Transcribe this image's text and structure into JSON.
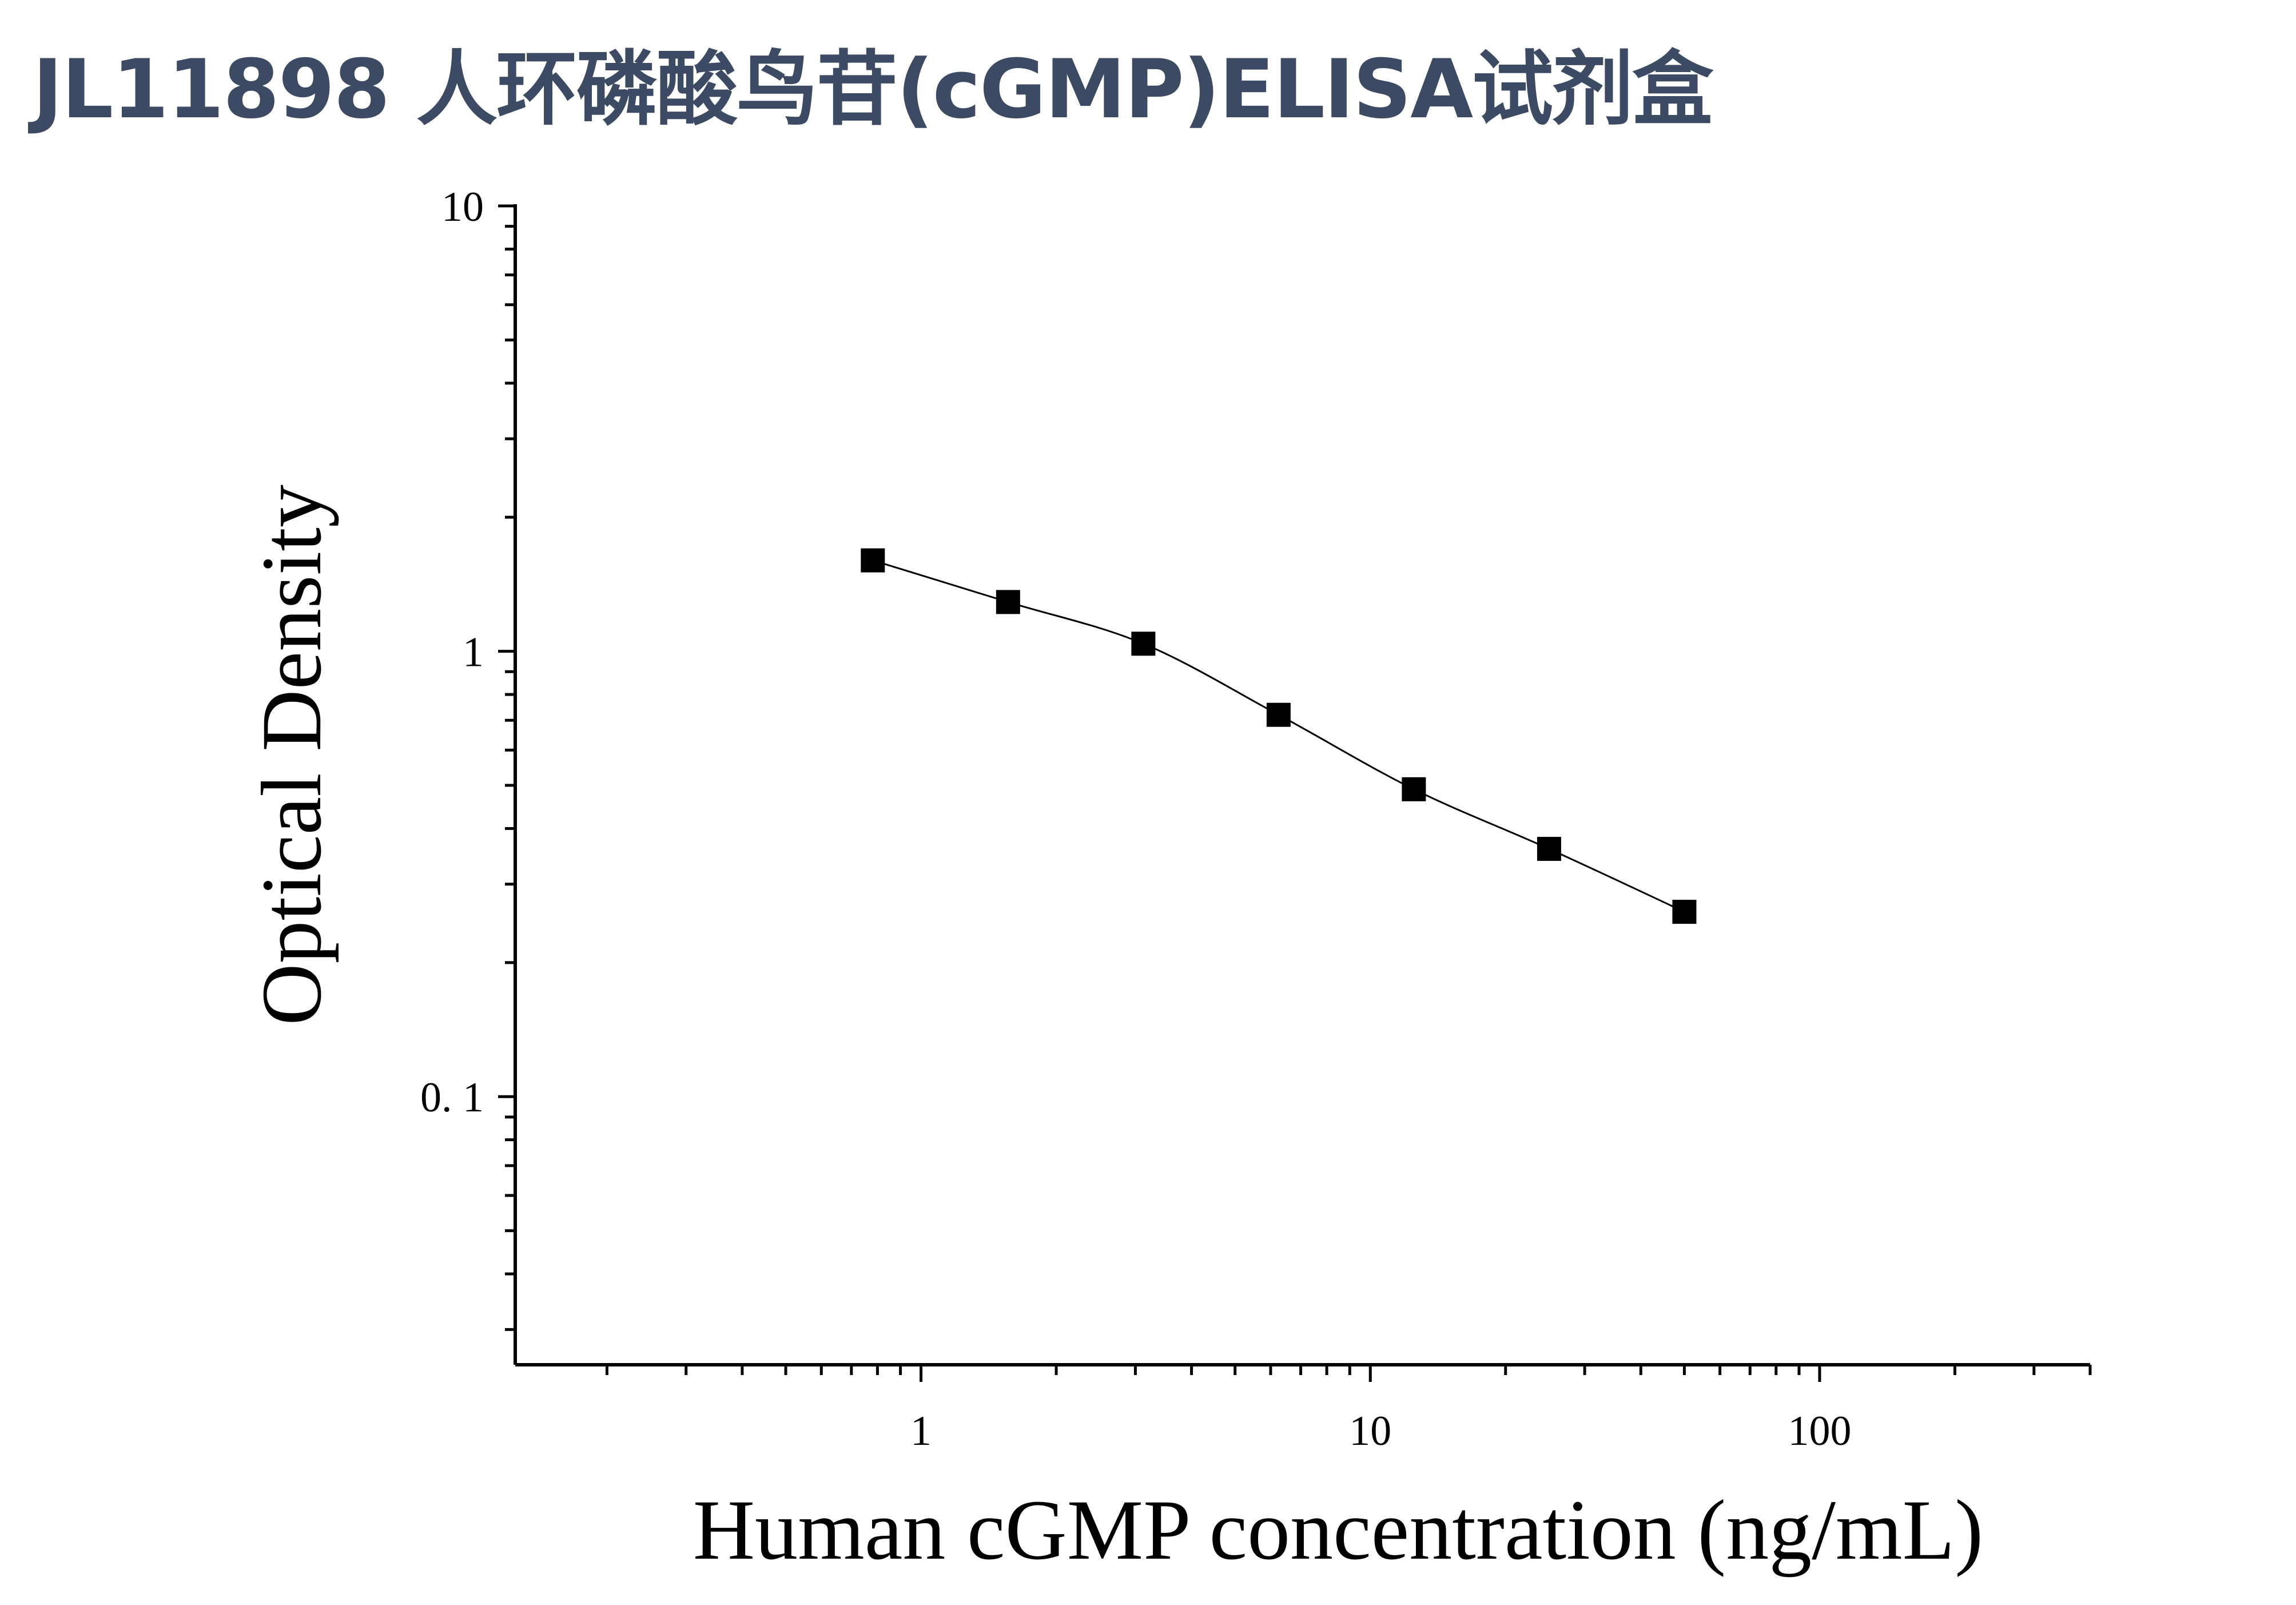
{
  "title": "JL11898 人环磷酸鸟苷(cGMP)ELISA试剂盒",
  "chart_data": {
    "type": "line",
    "title": "JL11898 人环磷酸鸟苷(cGMP)ELISA试剂盒",
    "xlabel": "Human cGMP concentration (ng/mL)",
    "ylabel": "Optical Density",
    "xscale": "log",
    "yscale": "log",
    "xlim": [
      0.125,
      400
    ],
    "ylim": [
      0.025,
      10
    ],
    "xticks": [
      "1",
      "10",
      "100"
    ],
    "yticks": [
      "0. 1",
      "1",
      "10"
    ],
    "grid": false,
    "marker": "square",
    "color": "#000000",
    "x": [
      0.78125,
      1.5625,
      3.125,
      6.25,
      12.5,
      25,
      50
    ],
    "y": [
      1.6,
      1.29,
      1.04,
      0.72,
      0.49,
      0.36,
      0.26
    ]
  }
}
